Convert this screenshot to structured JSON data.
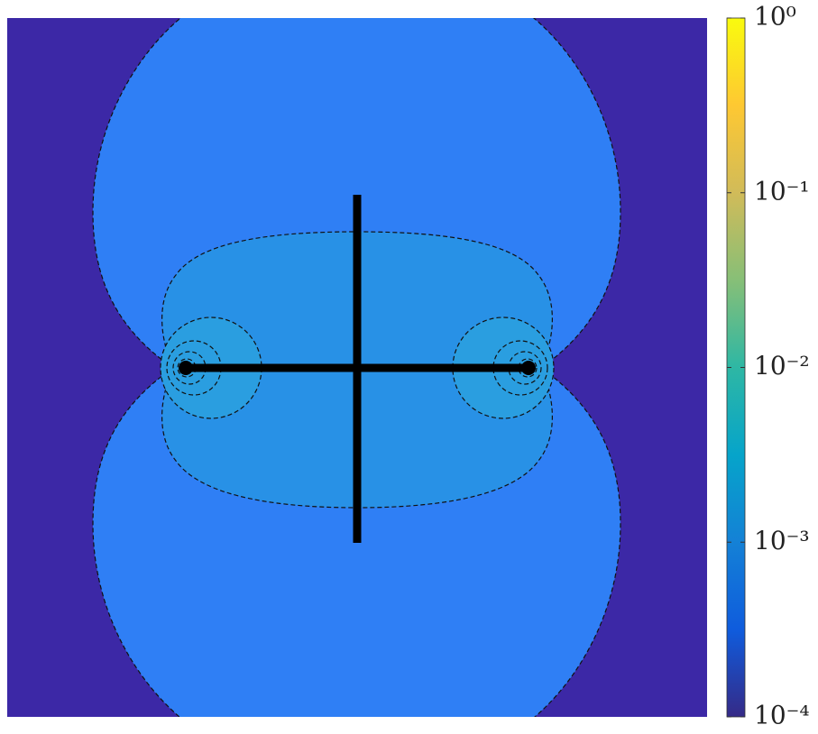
{
  "chart_data": {
    "type": "contour",
    "colorbar": {
      "scale": "log",
      "lim": [
        0.0001,
        1
      ],
      "ticks": [
        {
          "value": 1,
          "label": "10⁰"
        },
        {
          "value": 0.1,
          "label": "10⁻¹"
        },
        {
          "value": 0.01,
          "label": "10⁻²"
        },
        {
          "value": 0.001,
          "label": "10⁻³"
        },
        {
          "value": 0.0001,
          "label": "10⁻⁴"
        }
      ],
      "colormap": [
        "#352a87",
        "#0f5cdd",
        "#1481d6",
        "#06a4ca",
        "#2eb7a4",
        "#87bf77",
        "#d1bb59",
        "#fec832",
        "#f9fb0e"
      ]
    }
  }
}
